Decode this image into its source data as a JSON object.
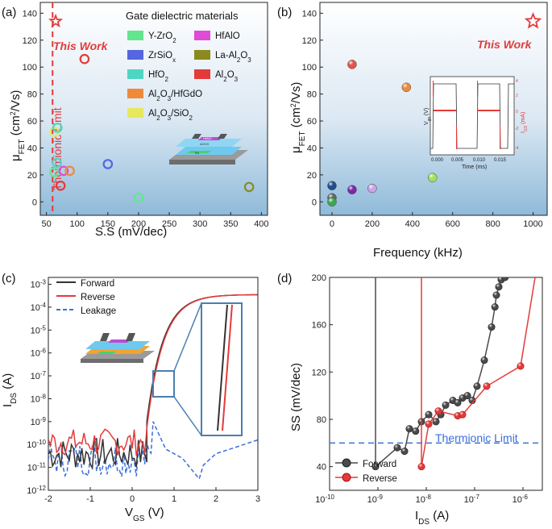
{
  "chart_data": [
    {
      "panel": "(a)",
      "type": "scatter",
      "xlabel": "S.S (mV/dec)",
      "ylabel": "μFET (cm2/Vs)",
      "xlim": [
        40,
        410
      ],
      "ylim": [
        -10,
        148
      ],
      "xticks": [
        "50",
        "100",
        "150",
        "200",
        "250",
        "300",
        "350",
        "400"
      ],
      "yticks": [
        "0",
        "20",
        "40",
        "60",
        "80",
        "100",
        "120",
        "140"
      ],
      "legend_title": "Gate dielectric materials",
      "legend": [
        {
          "label": "Y-ZrO2",
          "color": "#63e58f"
        },
        {
          "label": "HfAlO",
          "color": "#e04bd8"
        },
        {
          "label": "ZrSiOx",
          "color": "#5566e0"
        },
        {
          "label": "La-Al2O3",
          "color": "#8a8a1e"
        },
        {
          "label": "HfO2",
          "color": "#4fd6c2"
        },
        {
          "label": "Al2O3",
          "color": "#e53a3a"
        },
        {
          "label": "Al2O3/HfGdO",
          "color": "#ef8a3a"
        },
        {
          "label": "Al2O3/SiO2",
          "color": "#e6e85e"
        }
      ],
      "points": [
        {
          "material": "Al2O3",
          "x": 112,
          "y": 106
        },
        {
          "material": "Al2O3/SiO2",
          "x": 63,
          "y": 52
        },
        {
          "material": "HfO2",
          "x": 68,
          "y": 55
        },
        {
          "material": "HfO2",
          "x": 67,
          "y": 29
        },
        {
          "material": "Y-ZrO2",
          "x": 63,
          "y": 22
        },
        {
          "material": "HfAlO",
          "x": 78,
          "y": 23
        },
        {
          "material": "Al2O3/HfGdO",
          "x": 88,
          "y": 23
        },
        {
          "material": "Al2O3",
          "x": 73,
          "y": 12
        },
        {
          "material": "ZrSiOx",
          "x": 150,
          "y": 28
        },
        {
          "material": "Y-ZrO2",
          "x": 200,
          "y": 3
        },
        {
          "material": "La-Al2O3",
          "x": 380,
          "y": 11
        }
      ],
      "this_work": {
        "label": "This Work",
        "x": 65,
        "y": 134
      },
      "limit": {
        "label": "Thermionic Limit",
        "x": 60
      }
    },
    {
      "panel": "(b)",
      "type": "scatter",
      "xlabel": "Frequency (kHz)",
      "ylabel": "μFET (cm2/Vs)",
      "xlim": [
        -60,
        1070
      ],
      "ylim": [
        -10,
        148
      ],
      "xticks": [
        "0",
        "200",
        "400",
        "600",
        "800",
        "1000"
      ],
      "yticks": [
        "0",
        "20",
        "40",
        "60",
        "80",
        "100",
        "120",
        "140"
      ],
      "points": [
        {
          "x": 100,
          "y": 102,
          "color": "#e5534b"
        },
        {
          "x": 370,
          "y": 85,
          "color": "#ef8a3a"
        },
        {
          "x": 0,
          "y": 12,
          "color": "#1f4e8c"
        },
        {
          "x": 100,
          "y": 9,
          "color": "#7a2aa8"
        },
        {
          "x": 200,
          "y": 10,
          "color": "#c7a5e6"
        },
        {
          "x": 500,
          "y": 18,
          "color": "#9fe35f"
        },
        {
          "x": 0,
          "y": 3,
          "color": "#666666"
        },
        {
          "x": 0,
          "y": 0,
          "color": "#3fa556"
        }
      ],
      "this_work": {
        "label": "This Work",
        "x": 1000,
        "y": 134
      },
      "inset": {
        "xlabel": "Time (ms)",
        "ylabel_left": "Vgs (V)",
        "ylabel_right": "IGS (mA)",
        "xticks": [
          "0.000",
          "0.005",
          "0.010",
          "0.015"
        ],
        "yticks_left": [
          "-20",
          "-10",
          "0",
          "10",
          "20"
        ],
        "yticks_right": [
          "-4",
          "-2",
          "0",
          "2",
          "4"
        ]
      }
    },
    {
      "panel": "(c)",
      "type": "line",
      "xlabel": "VGS (V)",
      "ylabel": "IDS (A)",
      "xlim": [
        -2,
        3
      ],
      "ylim_log10": [
        -12,
        -2.7
      ],
      "xticks": [
        "-2",
        "-1",
        "0",
        "1",
        "2",
        "3"
      ],
      "yticks": [
        "10-12",
        "10-11",
        "10-10",
        "10-9",
        "10-8",
        "10-7",
        "10-6",
        "10-5",
        "10-4",
        "10-3"
      ],
      "series": [
        {
          "name": "Forward",
          "color": "#333333",
          "style": "solid"
        },
        {
          "name": "Reverse",
          "color": "#e53a3a",
          "style": "solid"
        },
        {
          "name": "Leakage",
          "color": "#3a6fd8",
          "style": "dashed"
        }
      ],
      "turn_on_v": 0.55,
      "on_current_log10": -3.45
    },
    {
      "panel": "(d)",
      "type": "line",
      "xlabel": "IDS (A)",
      "ylabel": "SS (mV/dec)",
      "xlim_log10": [
        -10,
        -5.6
      ],
      "ylim": [
        20,
        200
      ],
      "xticks": [
        "10-10",
        "10-9",
        "10-8",
        "10-7",
        "10-6"
      ],
      "yticks": [
        "40",
        "80",
        "120",
        "160",
        "200"
      ],
      "limit": {
        "label": "Thermionic Limit",
        "y": 60
      },
      "series": [
        {
          "name": "Forward",
          "color": "#4a4a4a",
          "points": [
            [
              -9.05,
              40
            ],
            [
              -8.6,
              56
            ],
            [
              -8.45,
              53
            ],
            [
              -8.35,
              72
            ],
            [
              -8.22,
              70
            ],
            [
              -8.1,
              78
            ],
            [
              -7.95,
              84
            ],
            [
              -7.8,
              78
            ],
            [
              -7.7,
              84
            ],
            [
              -7.6,
              92
            ],
            [
              -7.45,
              96
            ],
            [
              -7.35,
              94
            ],
            [
              -7.25,
              98
            ],
            [
              -7.15,
              100
            ],
            [
              -7.05,
              96
            ],
            [
              -6.95,
              108
            ],
            [
              -6.8,
              130
            ],
            [
              -6.65,
              158
            ],
            [
              -6.58,
              175
            ],
            [
              -6.55,
              185
            ],
            [
              -6.5,
              192
            ],
            [
              -6.45,
              198
            ],
            [
              -6.37,
              200
            ]
          ]
        },
        {
          "name": "Reverse",
          "color": "#e53a3a",
          "points": [
            [
              -8.1,
              40
            ],
            [
              -7.95,
              76
            ],
            [
              -7.75,
              87
            ],
            [
              -7.35,
              83
            ],
            [
              -7.25,
              84
            ],
            [
              -6.75,
              108
            ],
            [
              -6.05,
              125
            ]
          ]
        }
      ]
    }
  ],
  "panels": {
    "a": {
      "label": "(a)"
    },
    "b": {
      "label": "(b)"
    },
    "c": {
      "label": "(c)"
    },
    "d": {
      "label": "(d)"
    }
  },
  "texts": {
    "this_work": "This Work",
    "thermionic_limit": "Thermionic Limit",
    "mu_main": "μ",
    "mu_sub": "FET",
    "mu_units": " (cm",
    "mu_sup": "2",
    "mu_tail": "/Vs)",
    "ss_axis": "S.S (mV/dec)",
    "freq_axis": "Frequency (kHz)",
    "vgs_v": "V",
    "vgs_sub": "GS",
    "vgs_unit": " (V)",
    "ids_i": "I",
    "ids_sub": "DS",
    "ids_unit": " (A)",
    "ss_dec": "SS (mV/dec)",
    "inset_time": "Time (ms)",
    "inset_vgs": "V",
    "inset_vgs_sub": "gs",
    "inset_vgs_unit": " (V)",
    "inset_igs": "I",
    "inset_igs_sub": "GS",
    "inset_igs_unit": " (mA)",
    "legend_title": "Gate dielectric materials",
    "forward": "Forward",
    "reverse": "Reverse",
    "leakage": "Leakage",
    "dev_top": "HfAlO",
    "dev_mid": "Al2O3",
    "dev_bot": "TiN",
    "dev_mid2": "H2O",
    "dev_side": "Ti/Au"
  },
  "colors": {
    "plot_bg_top": "#ffffff",
    "plot_bg_bottom": "#8fbad9",
    "red": "#e53a3a",
    "blue_dash": "#3a6fd8"
  }
}
